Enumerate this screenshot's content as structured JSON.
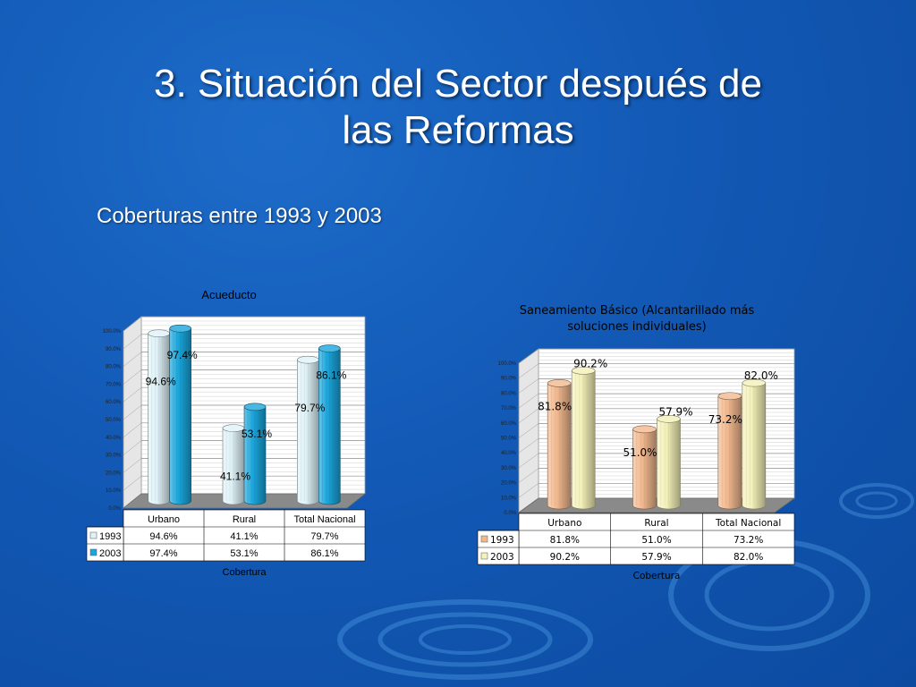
{
  "slide": {
    "title_line1": "3. Situación del Sector después de",
    "title_line2": "las Reformas",
    "subtitle": "Coberturas entre 1993 y 2003"
  },
  "colors": {
    "chart1_1993": "#dff2f7",
    "chart1_2003": "#1aa6dc",
    "chart2_1993": "#f2b98f",
    "chart2_2003": "#f4f1b9"
  },
  "chart_data": [
    {
      "type": "bar",
      "title": "Acueducto",
      "xlabel": "Cobertura",
      "ylabel": "",
      "ylim": [
        0,
        100
      ],
      "yticks": [
        "0.0%",
        "10.0%",
        "20.0%",
        "30.0%",
        "40.0%",
        "50.0%",
        "60.0%",
        "70.0%",
        "80.0%",
        "90.0%",
        "100.0%"
      ],
      "categories": [
        "Urbano",
        "Rural",
        "Total Nacional"
      ],
      "series": [
        {
          "name": "1993",
          "values": [
            94.6,
            41.1,
            79.7
          ],
          "labels": [
            "94.6%",
            "41.1%",
            "79.7%"
          ]
        },
        {
          "name": "2003",
          "values": [
            97.4,
            53.1,
            86.1
          ],
          "labels": [
            "97.4%",
            "53.1%",
            "86.1%"
          ]
        }
      ],
      "grid": true,
      "legend": "data-table"
    },
    {
      "type": "bar",
      "title_line1": "Saneamiento Básico (Alcantarillado más",
      "title_line2": "soluciones individuales)",
      "xlabel": "Cobertura",
      "ylabel": "",
      "ylim": [
        0,
        100
      ],
      "yticks": [
        "0.0%",
        "10.0%",
        "20.0%",
        "30.0%",
        "40.0%",
        "50.0%",
        "60.0%",
        "70.0%",
        "80.0%",
        "90.0%",
        "100.0%"
      ],
      "categories": [
        "Urbano",
        "Rural",
        "Total Nacional"
      ],
      "series": [
        {
          "name": "1993",
          "values": [
            81.8,
            51.0,
            73.2
          ],
          "labels": [
            "81.8%",
            "51.0%",
            "73.2%"
          ]
        },
        {
          "name": "2003",
          "values": [
            90.2,
            57.9,
            82.0
          ],
          "labels": [
            "90.2%",
            "57.9%",
            "82.0%"
          ]
        }
      ],
      "grid": true,
      "legend": "data-table"
    }
  ]
}
